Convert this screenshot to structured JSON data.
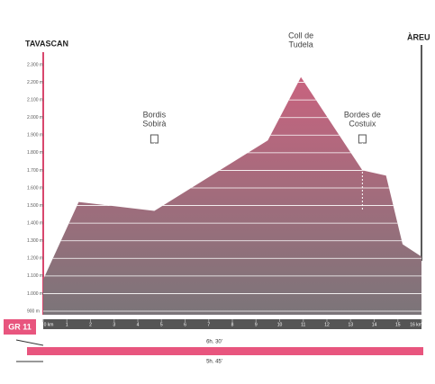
{
  "chart_data": {
    "type": "area",
    "start": "TAVASCAN",
    "end": "ÀREU",
    "trail": "GR 11",
    "x": [
      0,
      1.5,
      4.7,
      9.5,
      10.9,
      13.5,
      14.5,
      15.2,
      16
    ],
    "values": [
      1080,
      1520,
      1470,
      1870,
      2230,
      1700,
      1670,
      1280,
      1210
    ],
    "xlim": [
      0,
      16
    ],
    "ylim": [
      900,
      2300
    ],
    "xticks": [
      {
        "value": 0,
        "label": "0 km"
      },
      1,
      2,
      3,
      4,
      5,
      6,
      7,
      8,
      9,
      10,
      11,
      12,
      13,
      14,
      15,
      {
        "value": 16,
        "label": "16 km"
      }
    ],
    "yticks": [
      {
        "value": 900,
        "label": "900 m"
      },
      {
        "value": 1000,
        "label": "1.000 m"
      },
      {
        "value": 1100,
        "label": "1.100 m"
      },
      {
        "value": 1200,
        "label": "1.200 m"
      },
      {
        "value": 1300,
        "label": "1.300 m"
      },
      {
        "value": 1400,
        "label": "1.400 m"
      },
      {
        "value": 1500,
        "label": "1.500 m"
      },
      {
        "value": 1600,
        "label": "1.600 m"
      },
      {
        "value": 1700,
        "label": "1.700 m"
      },
      {
        "value": 1800,
        "label": "1.800 m"
      },
      {
        "value": 1900,
        "label": "1.900 m"
      },
      {
        "value": 2000,
        "label": "2.000 m"
      },
      {
        "value": 2100,
        "label": "2.100 m"
      },
      {
        "value": 2200,
        "label": "2.200 m"
      },
      {
        "value": 2300,
        "label": "2.300 m"
      }
    ],
    "waypoints": [
      {
        "x": 4.7,
        "label": [
          "Bordis",
          "Sobirà"
        ],
        "icon": true
      },
      {
        "x": 10.9,
        "label": [
          "Coll de",
          "Tudela"
        ],
        "icon": false
      },
      {
        "x": 13.5,
        "label": [
          "Bordes de",
          "Costuix"
        ],
        "icon": true
      }
    ],
    "durations": [
      "6h. 30'",
      "5h. 45'"
    ],
    "color_top": "#c8637f",
    "color_bottom": "#7b7579"
  }
}
